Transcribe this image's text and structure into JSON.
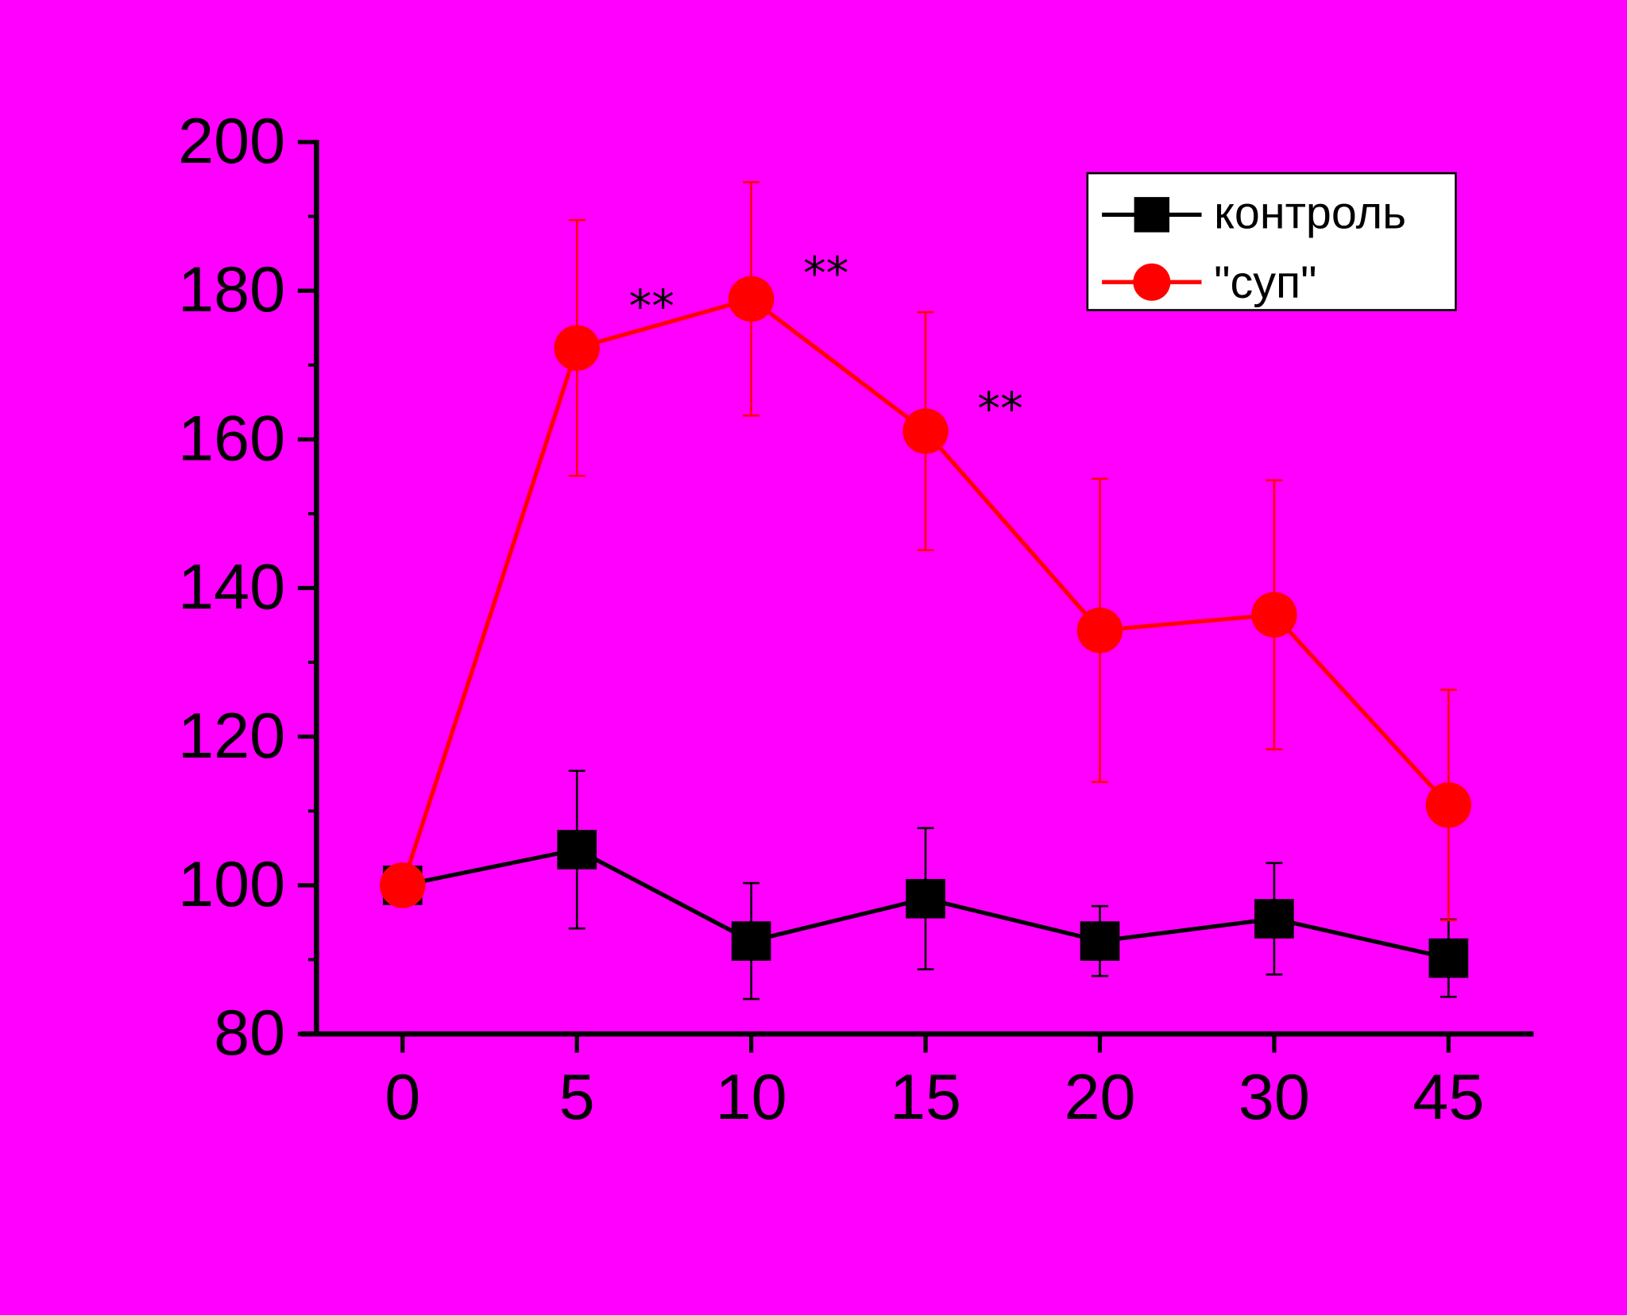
{
  "background_color": "#FF00FF",
  "chart_data": {
    "type": "line",
    "title": "",
    "xlabel": "",
    "ylabel": "",
    "categories": [
      "0",
      "5",
      "10",
      "15",
      "20",
      "30",
      "45"
    ],
    "ylim": [
      80,
      200
    ],
    "yticks": [
      80,
      100,
      120,
      140,
      160,
      180,
      200
    ],
    "grid": false,
    "legend_position": "top-right",
    "series": [
      {
        "name": "контроль",
        "color": "#000000",
        "marker": "square",
        "values": [
          100,
          104.8,
          92.5,
          98.2,
          92.5,
          95.5,
          90.2
        ],
        "errors": [
          0,
          10.6,
          7.8,
          9.5,
          4.7,
          7.5,
          5.2
        ]
      },
      {
        "name": "\"суп\"",
        "color": "#FF0000",
        "marker": "circle",
        "values": [
          100,
          172.3,
          178.9,
          161.1,
          134.3,
          136.4,
          110.8
        ],
        "errors": [
          0,
          17.2,
          15.7,
          16.0,
          20.4,
          18.1,
          15.5
        ]
      }
    ],
    "annotations": [
      {
        "text": "**",
        "category": "5",
        "y": 175.8
      },
      {
        "text": "**",
        "category": "10",
        "y": 180.2
      },
      {
        "text": "**",
        "category": "15",
        "y": 162.0
      }
    ]
  }
}
